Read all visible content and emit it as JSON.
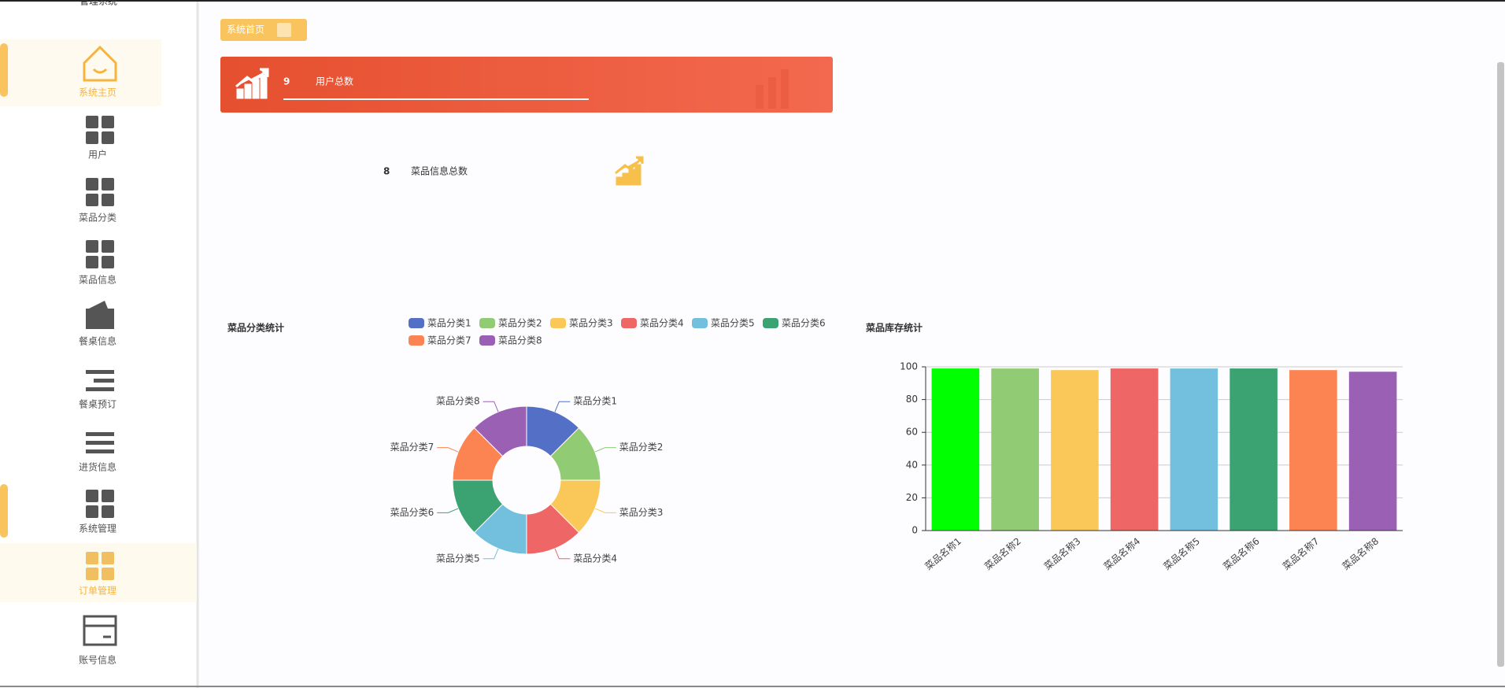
{
  "header": {
    "title": "管理系统"
  },
  "sidebar": {
    "items": [
      "系统主页",
      "用户",
      "菜品分类",
      "菜品信息",
      "餐桌信息",
      "餐桌预订",
      "进货信息",
      "系统管理",
      "订单管理",
      "账号信息"
    ]
  },
  "breadcrumb": {
    "label": "系统首页"
  },
  "stats": [
    {
      "value": 9,
      "label": "用户总数"
    },
    {
      "value": 8,
      "label": "菜品信息总数"
    }
  ],
  "chart_data": [
    {
      "type": "pie",
      "title": "菜品分类统计",
      "donut": true,
      "categories": [
        "菜品分类1",
        "菜品分类2",
        "菜品分类3",
        "菜品分类4",
        "菜品分类5",
        "菜品分类6",
        "菜品分类7",
        "菜品分类8"
      ],
      "values": [
        1,
        1,
        1,
        1,
        1,
        1,
        1,
        1
      ],
      "colors": [
        "#5470c6",
        "#91cc75",
        "#fac858",
        "#ee6666",
        "#73c0de",
        "#3ba272",
        "#fc8452",
        "#9a60b4"
      ]
    },
    {
      "type": "bar",
      "title": "菜品库存统计",
      "categories": [
        "菜品名称1",
        "菜品名称2",
        "菜品名称3",
        "菜品名称4",
        "菜品名称5",
        "菜品名称6",
        "菜品名称7",
        "菜品名称8"
      ],
      "values": [
        99,
        99,
        98,
        99,
        99,
        99,
        98,
        97
      ],
      "colors": [
        "#00ff00",
        "#91cc75",
        "#fac858",
        "#ee6666",
        "#73c0de",
        "#3ba272",
        "#fc8452",
        "#9a60b4"
      ],
      "ylim": [
        0,
        100
      ],
      "yticks": [
        0,
        20,
        40,
        60,
        80,
        100
      ],
      "grid": true
    }
  ]
}
